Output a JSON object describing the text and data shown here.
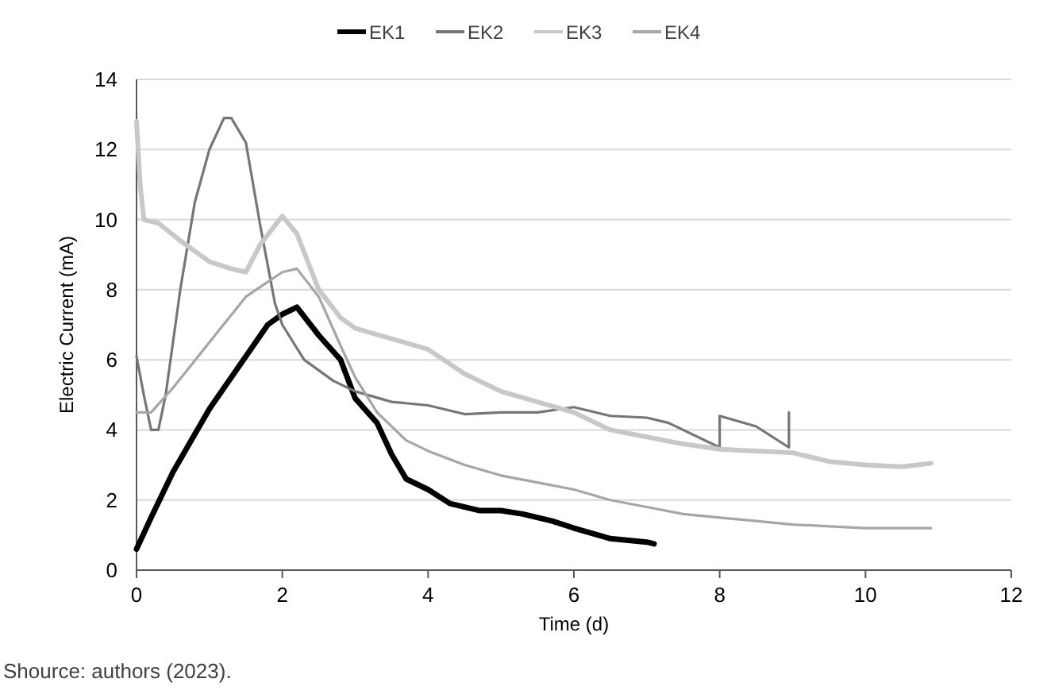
{
  "chart_data": {
    "type": "line",
    "xlabel": "Time (d)",
    "ylabel": "Electric Current (mA)",
    "xlim": [
      0,
      12
    ],
    "xticks": [
      0,
      2,
      4,
      6,
      8,
      10,
      12
    ],
    "ylim": [
      0,
      14
    ],
    "yticks": [
      0,
      2,
      4,
      6,
      8,
      10,
      12,
      14
    ],
    "grid": "y",
    "legend": "top",
    "marker": "none",
    "annotations": [
      "Shource: authors (2023)."
    ],
    "series": [
      {
        "name": "EK1",
        "color": "#000000",
        "x": [
          0,
          0.2,
          0.5,
          1,
          1.4,
          1.8,
          2,
          2.2,
          2.5,
          2.8,
          3,
          3.3,
          3.5,
          3.7,
          4,
          4.3,
          4.7,
          5,
          5.3,
          5.7,
          6,
          6.5,
          7,
          7.1
        ],
        "values": [
          0.6,
          1.5,
          2.8,
          4.6,
          5.8,
          7.0,
          7.3,
          7.5,
          6.7,
          6.0,
          4.9,
          4.2,
          3.3,
          2.6,
          2.3,
          1.9,
          1.7,
          1.7,
          1.6,
          1.4,
          1.2,
          0.9,
          0.8,
          0.75
        ]
      },
      {
        "name": "EK2",
        "color": "#767676",
        "x": [
          0,
          0.1,
          0.2,
          0.3,
          0.4,
          0.6,
          0.8,
          1,
          1.2,
          1.3,
          1.5,
          1.7,
          1.9,
          2,
          2.3,
          2.7,
          3,
          3.5,
          4,
          4.5,
          5,
          5.5,
          6,
          6.5,
          7,
          7.3,
          7.6,
          8,
          8,
          8.5,
          8.95,
          8.95
        ],
        "values": [
          6.1,
          5,
          4,
          4.0,
          5,
          8,
          10.5,
          12,
          12.9,
          12.9,
          12.2,
          9.8,
          7.6,
          7.0,
          6.0,
          5.4,
          5.1,
          4.8,
          4.7,
          4.45,
          4.5,
          4.5,
          4.65,
          4.4,
          4.35,
          4.2,
          3.9,
          3.5,
          4.4,
          4.1,
          3.5,
          4.5
        ]
      },
      {
        "name": "EK3",
        "color": "#c8c8c8",
        "x": [
          0,
          0.05,
          0.1,
          0.3,
          0.6,
          1,
          1.3,
          1.5,
          1.7,
          2,
          2.2,
          2.5,
          2.8,
          3,
          3.5,
          4,
          4.5,
          5,
          5.5,
          6,
          6.5,
          7,
          7.5,
          8,
          8.5,
          9,
          9.5,
          10,
          10.5,
          10.9
        ],
        "values": [
          12.8,
          11,
          10,
          9.9,
          9.4,
          8.8,
          8.6,
          8.5,
          9.3,
          10.1,
          9.6,
          8,
          7.2,
          6.9,
          6.6,
          6.3,
          5.6,
          5.1,
          4.8,
          4.5,
          4.0,
          3.8,
          3.6,
          3.45,
          3.4,
          3.35,
          3.1,
          3.0,
          2.95,
          3.05
        ]
      },
      {
        "name": "EK4",
        "color": "#a6a6a6",
        "x": [
          0,
          0.2,
          0.5,
          1,
          1.5,
          2,
          2.2,
          2.5,
          2.8,
          3,
          3.3,
          3.7,
          4,
          4.5,
          5,
          5.5,
          6,
          6.5,
          7,
          7.5,
          8,
          8.5,
          9,
          10,
          10.9
        ],
        "values": [
          4.5,
          4.5,
          5.2,
          6.5,
          7.8,
          8.5,
          8.6,
          7.8,
          6.4,
          5.5,
          4.5,
          3.7,
          3.4,
          3.0,
          2.7,
          2.5,
          2.3,
          2.0,
          1.8,
          1.6,
          1.5,
          1.4,
          1.3,
          1.2,
          1.2
        ]
      }
    ]
  }
}
